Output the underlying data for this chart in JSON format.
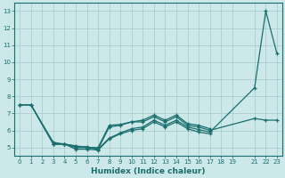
{
  "xlabel": "Humidex (Indice chaleur)",
  "bg_color": "#cce8e8",
  "grid_color": "#aacece",
  "line_color": "#1a6e6e",
  "x_ticks": [
    0,
    1,
    2,
    3,
    4,
    5,
    6,
    7,
    8,
    9,
    10,
    11,
    12,
    13,
    14,
    15,
    16,
    17,
    18,
    19,
    21,
    22,
    23
  ],
  "series": [
    {
      "x": [
        0,
        1,
        3,
        4,
        5,
        6,
        7,
        8,
        9,
        10,
        11,
        12,
        13,
        14,
        15,
        16,
        17,
        21,
        22,
        23
      ],
      "y": [
        7.5,
        7.5,
        5.2,
        5.2,
        5.05,
        5.05,
        4.9,
        5.55,
        5.85,
        6.1,
        6.2,
        6.6,
        6.3,
        6.6,
        6.2,
        6.05,
        5.9,
        8.5,
        13.0,
        10.5
      ]
    },
    {
      "x": [
        0,
        1,
        3,
        4,
        5,
        6,
        7,
        8,
        9,
        10,
        11,
        12,
        13,
        14,
        15,
        16,
        17,
        21,
        22,
        23
      ],
      "y": [
        7.5,
        7.5,
        5.2,
        5.2,
        5.0,
        5.0,
        4.9,
        6.2,
        6.3,
        6.5,
        6.5,
        6.8,
        6.5,
        6.8,
        6.3,
        6.2,
        6.0,
        6.7,
        6.6,
        6.6
      ]
    },
    {
      "x": [
        0,
        1,
        3,
        4,
        5,
        6,
        7,
        8,
        9,
        10,
        11,
        12,
        13,
        14,
        15,
        16,
        17
      ],
      "y": [
        7.5,
        7.5,
        5.3,
        5.2,
        5.1,
        5.0,
        5.0,
        6.3,
        6.35,
        6.5,
        6.6,
        6.9,
        6.6,
        6.9,
        6.4,
        6.3,
        6.1
      ]
    },
    {
      "x": [
        3,
        4,
        5,
        6,
        7,
        8,
        9,
        10,
        11,
        12,
        13,
        14,
        15,
        16,
        17
      ],
      "y": [
        5.2,
        5.2,
        4.9,
        4.9,
        4.85,
        5.5,
        5.8,
        6.0,
        6.1,
        6.5,
        6.2,
        6.5,
        6.1,
        5.9,
        5.8
      ]
    }
  ],
  "ylim": [
    4.5,
    13.5
  ],
  "yticks": [
    5,
    6,
    7,
    8,
    9,
    10,
    11,
    12,
    13
  ],
  "xlim": [
    -0.5,
    23.5
  ]
}
